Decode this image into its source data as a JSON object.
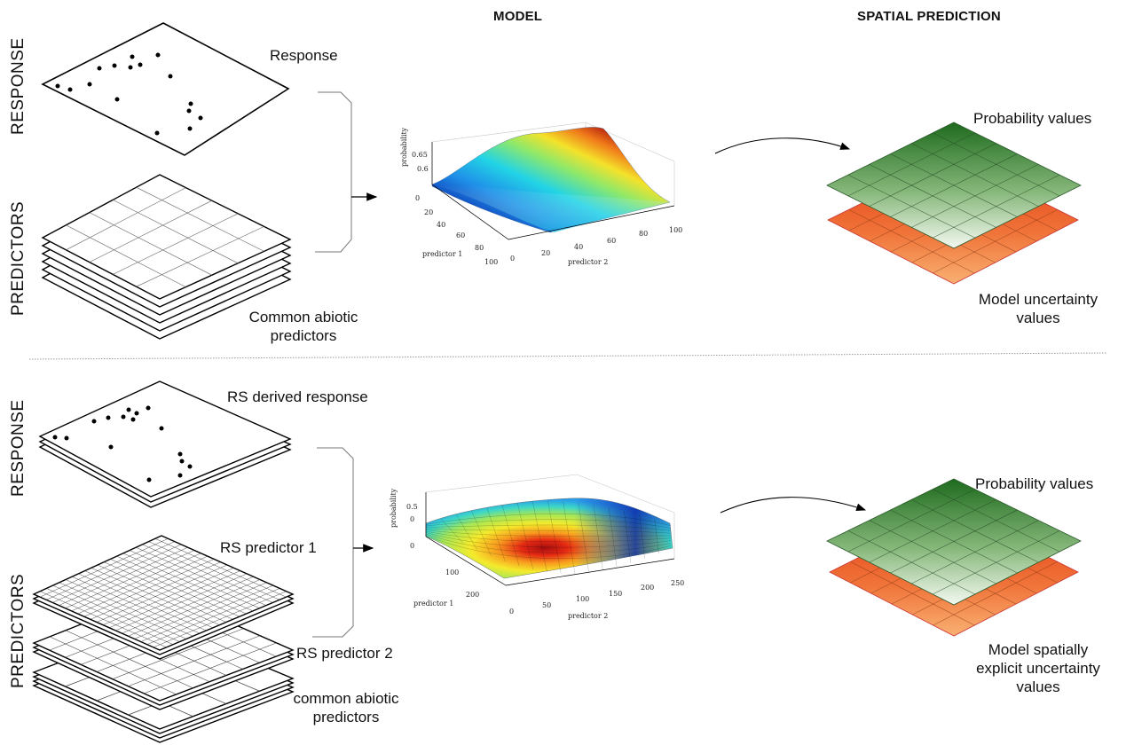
{
  "headers": {
    "model": "MODEL",
    "spatial": "SPATIAL PREDICTION"
  },
  "top": {
    "side_response": "RESPONSE",
    "side_predictors": "PREDICTORS",
    "response_label": "Response",
    "predictors_label_1": "Common abiotic",
    "predictors_label_2": "predictors",
    "prob_label": "Probability values",
    "unc_label_1": "Model uncertainty",
    "unc_label_2": "values",
    "plot": {
      "zlabel": "probability",
      "xlabel": "predictor 1",
      "ylabel": "predictor 2",
      "zticks": [
        "0.65",
        "0.6"
      ],
      "xticks": [
        "0",
        "20",
        "40",
        "60",
        "80",
        "100"
      ],
      "yticks": [
        "0",
        "20",
        "40",
        "60",
        "80",
        "100"
      ]
    }
  },
  "bottom": {
    "side_response": "RESPONSE",
    "side_predictors": "PREDICTORS",
    "response_label": "RS derived response",
    "rs1_label": "RS predictor 1",
    "rs2_label": "RS predictor 2",
    "common_label_1": "common abiotic",
    "common_label_2": "predictors",
    "prob_label": "Probability values",
    "unc_label_1": "Model spatially",
    "unc_label_2": "explicit uncertainty",
    "unc_label_3": "values",
    "plot": {
      "zlabel": "probability",
      "xlabel": "predictor 1",
      "ylabel": "predictor 2",
      "zticks": [
        "0.5",
        "0"
      ],
      "xticks": [
        "0",
        "100",
        "200"
      ],
      "yticks": [
        "0",
        "50",
        "100",
        "150",
        "200",
        "250"
      ]
    }
  },
  "colors": {
    "prob_dark": "#1e6b1e",
    "prob_light": "#f2f8ef",
    "unc_dark": "#e43a12",
    "unc_light": "#f9b072"
  }
}
